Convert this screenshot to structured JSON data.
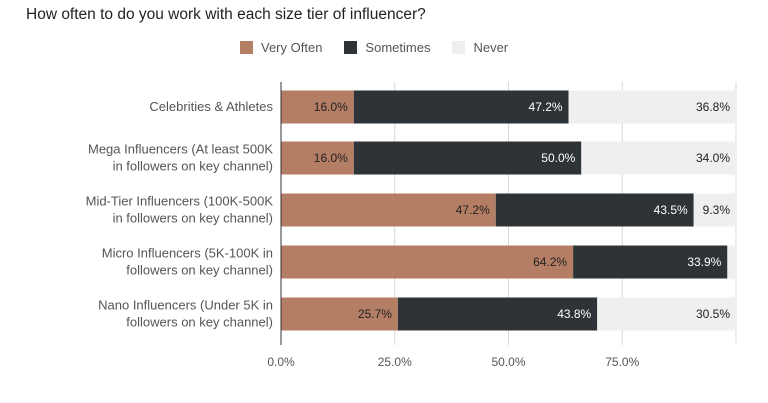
{
  "title": "How often to do you work with each size tier of influencer?",
  "chart_data": {
    "type": "bar",
    "orientation": "horizontal",
    "stacked": true,
    "title": "How often to do you work with each size tier of influencer?",
    "categories": [
      [
        "Celebrities & Athletes"
      ],
      [
        "Mega Influencers (At least 500K",
        "in followers on key channel)"
      ],
      [
        "Mid-Tier Influencers (100K-500K",
        "in followers on key channel)"
      ],
      [
        "Micro Influencers (5K-100K in",
        "followers on key channel)"
      ],
      [
        "Nano Influencers (Under 5K in",
        "followers on key channel)"
      ]
    ],
    "series": [
      {
        "name": "Very Often",
        "color": "#b47e65",
        "label_color": "#222222",
        "values": [
          16.0,
          16.0,
          47.2,
          64.2,
          25.7
        ],
        "labels": [
          "16.0%",
          "16.0%",
          "47.2%",
          "64.2%",
          "25.7%"
        ]
      },
      {
        "name": "Sometimes",
        "color": "#2e3338",
        "label_color": "#ffffff",
        "values": [
          47.2,
          50.0,
          43.5,
          33.9,
          43.8
        ],
        "labels": [
          "47.2%",
          "50.0%",
          "43.5%",
          "33.9%",
          "43.8%"
        ]
      },
      {
        "name": "Never",
        "color": "#efefef",
        "label_color": "#222222",
        "values": [
          36.8,
          34.0,
          9.3,
          1.9,
          30.5
        ],
        "labels": [
          "36.8%",
          "34.0%",
          "9.3%",
          "",
          "30.5%"
        ]
      }
    ],
    "xlim": [
      0,
      100
    ],
    "xticks": [
      0,
      25,
      50,
      75
    ],
    "xtick_labels": [
      "0.0%",
      "25.0%",
      "50.0%",
      "75.0%"
    ],
    "grid": true,
    "legend_position": "top"
  }
}
